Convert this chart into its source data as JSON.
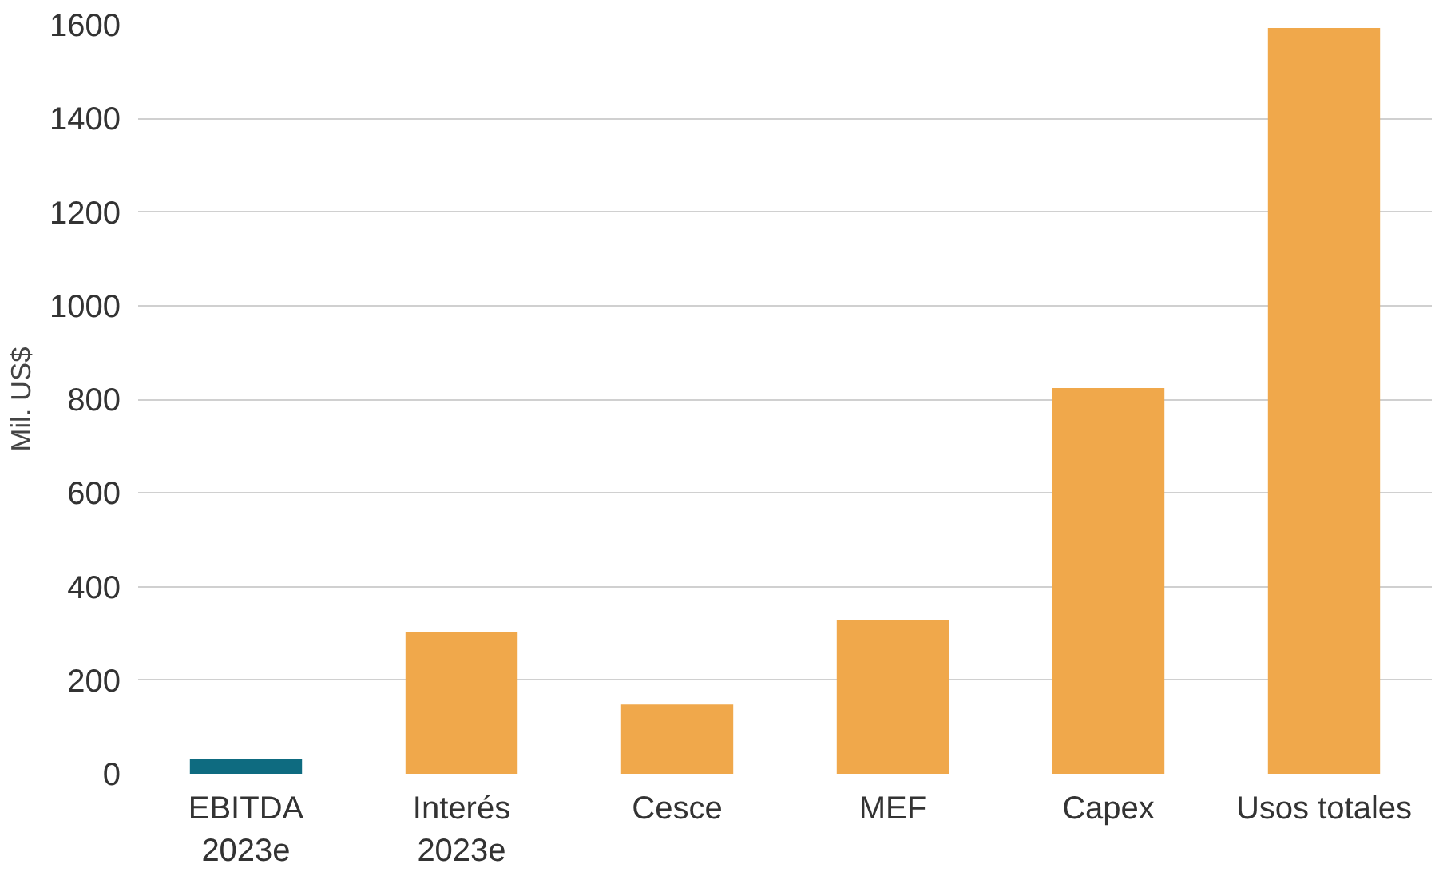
{
  "chart_data": {
    "type": "bar",
    "ylabel": "Mil. US$",
    "categories": [
      "EBITDA\n2023e",
      "Interés\n2023e",
      "Cesce",
      "MEF",
      "Capex",
      "Usos totales"
    ],
    "values": [
      31,
      303,
      148,
      328,
      824,
      1593
    ],
    "colors": [
      "#0e6b80",
      "#f0a84b",
      "#f0a84b",
      "#f0a84b",
      "#f0a84b",
      "#f0a84b"
    ],
    "ylim": [
      0,
      1600
    ],
    "yticks": [
      0,
      200,
      400,
      600,
      800,
      1000,
      1200,
      1400,
      1600
    ],
    "grid": "y"
  }
}
